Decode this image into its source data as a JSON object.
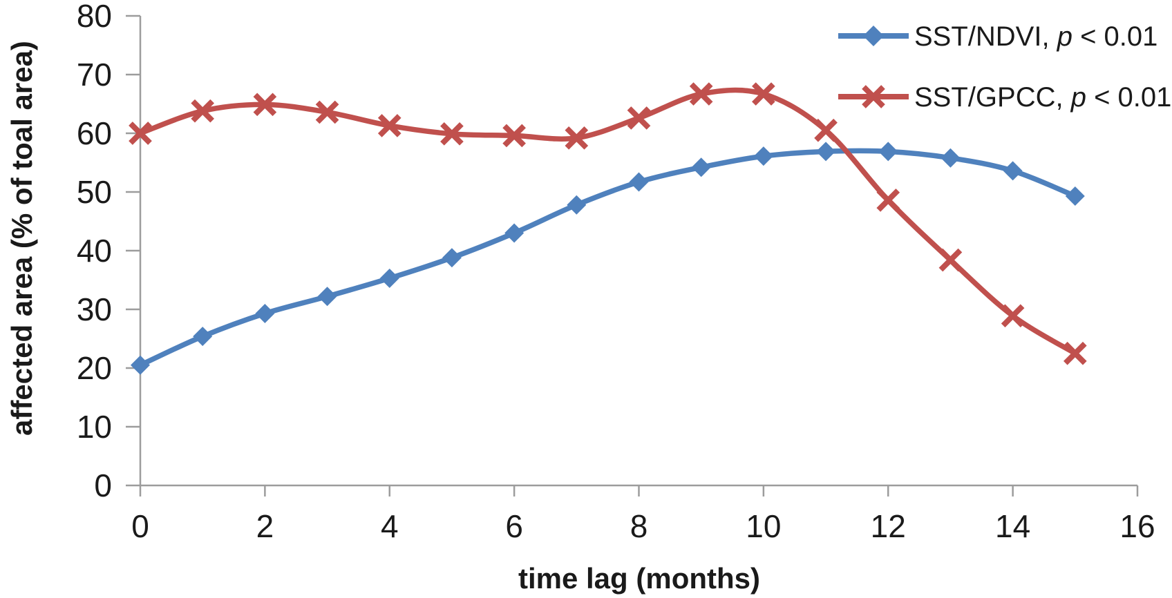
{
  "chart_data": {
    "type": "line",
    "x": [
      0,
      1,
      2,
      3,
      4,
      5,
      6,
      7,
      8,
      9,
      10,
      11,
      12,
      13,
      14,
      15
    ],
    "series": [
      {
        "name": "SST/NDVI, p < 0.01",
        "color": "#4F81BD",
        "marker": "diamond",
        "smooth": true,
        "values": [
          20.5,
          25.4,
          29.3,
          32.2,
          35.3,
          38.8,
          43.0,
          47.8,
          51.7,
          54.2,
          56.1,
          56.9,
          56.9,
          55.8,
          53.6,
          49.3
        ]
      },
      {
        "name": "SST/GPCC, p < 0.01",
        "color": "#C0504D",
        "marker": "x",
        "smooth": true,
        "values": [
          60.0,
          63.8,
          64.9,
          63.6,
          61.3,
          59.9,
          59.6,
          59.2,
          62.6,
          66.7,
          66.7,
          60.5,
          48.6,
          38.4,
          28.9,
          22.5
        ]
      }
    ],
    "title": "",
    "xlabel": "time lag (months)",
    "ylabel": "affected area (% of toal area)",
    "xlim": [
      0,
      16
    ],
    "ylim": [
      0,
      80
    ],
    "xticks": [
      0,
      2,
      4,
      6,
      8,
      10,
      12,
      14,
      16
    ],
    "yticks": [
      0,
      10,
      20,
      30,
      40,
      50,
      60,
      70,
      80
    ],
    "grid": false,
    "legend_position": "top-right"
  },
  "legend": {
    "entries": [
      {
        "label": "SST/NDVI, p < 0.01",
        "parts": [
          {
            "t": "SST/NDVI, ",
            "italic": false
          },
          {
            "t": "p",
            "italic": true
          },
          {
            "t": " < 0.01",
            "italic": false
          }
        ]
      },
      {
        "label": "SST/GPCC, p < 0.01",
        "parts": [
          {
            "t": "SST/GPCC, ",
            "italic": false
          },
          {
            "t": "p",
            "italic": true
          },
          {
            "t": " < 0.01",
            "italic": false
          }
        ]
      }
    ]
  },
  "style": {
    "axis_color": "#9C9C9C",
    "text_color": "#1a1a1a",
    "background": "#ffffff",
    "series_blue": "#4F81BD",
    "series_red": "#C0504D"
  }
}
